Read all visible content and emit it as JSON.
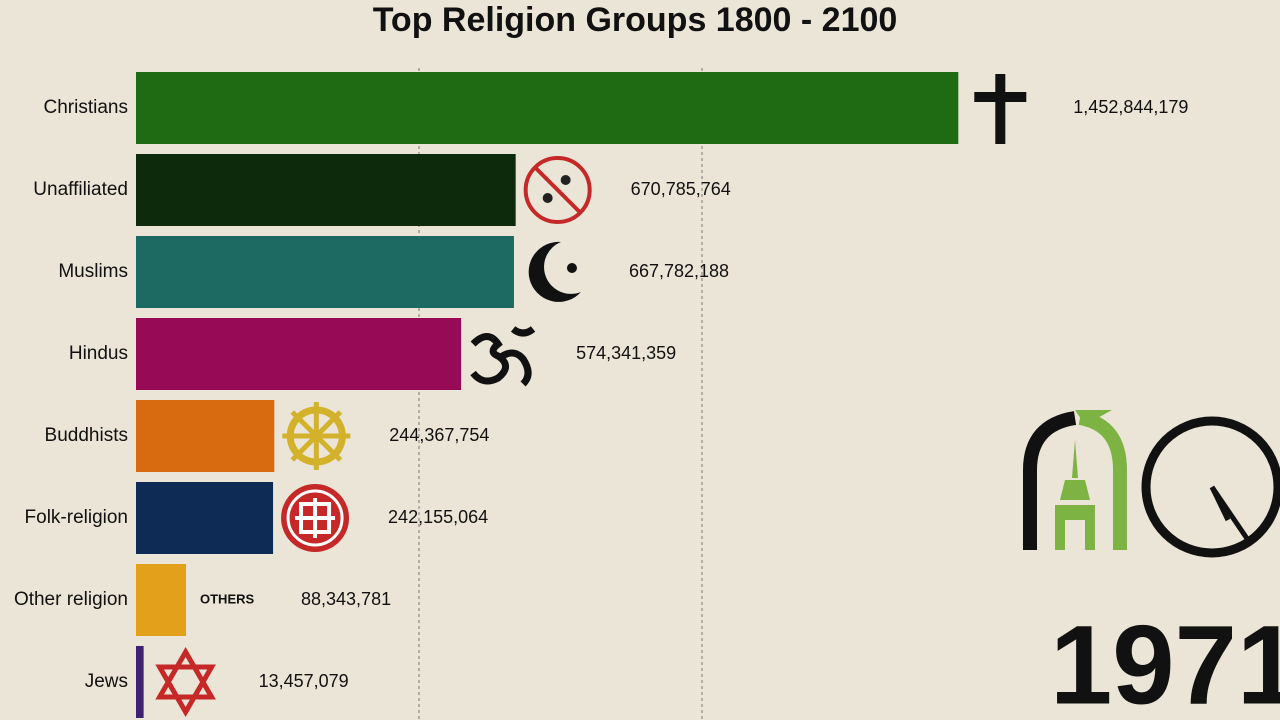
{
  "chart_data": {
    "type": "bar",
    "orientation": "horizontal",
    "title": "Top Religion Groups 1800 - 2100",
    "categories": [
      "Christians",
      "Unaffiliated",
      "Muslims",
      "Hindus",
      "Buddhists",
      "Folk-religion",
      "Other religion",
      "Jews"
    ],
    "values": [
      1452844179,
      670785764,
      667782188,
      574341359,
      244367754,
      242155064,
      88343781,
      13457079
    ],
    "value_labels": [
      "1,452,844,179",
      "670,785,764",
      "667,782,188",
      "574,341,359",
      "244,367,754",
      "242,155,064",
      "88,343,781",
      "13,457,079"
    ],
    "colors": [
      "#1f6b13",
      "#0d2a0c",
      "#1d6a62",
      "#970a55",
      "#d86a10",
      "#0d2b55",
      "#e2a01b",
      "#3e2170"
    ],
    "xlim": [
      0,
      2000000000
    ],
    "xticks": [
      500000000,
      1000000000
    ],
    "grid": true,
    "others_icon_text": "OTHERS",
    "year": "1971"
  }
}
